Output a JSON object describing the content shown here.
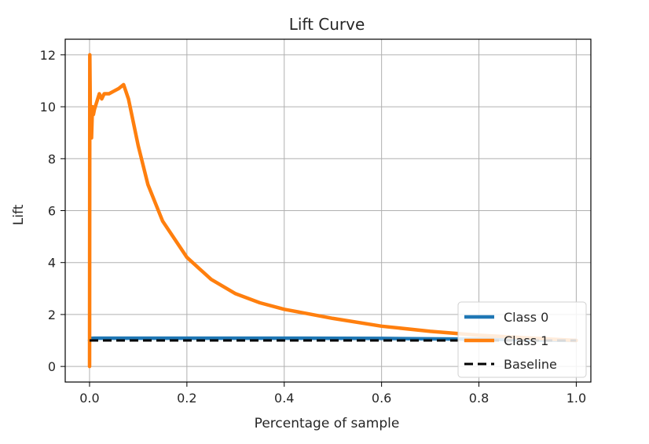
{
  "chart_data": {
    "type": "line",
    "title": "Lift Curve",
    "xlabel": "Percentage of sample",
    "ylabel": "Lift",
    "xlim": [
      -0.05,
      1.03
    ],
    "ylim": [
      -0.6,
      12.6
    ],
    "xticks": [
      0.0,
      0.2,
      0.4,
      0.6,
      0.8,
      1.0
    ],
    "xtick_labels": [
      "0.0",
      "0.2",
      "0.4",
      "0.6",
      "0.8",
      "1.0"
    ],
    "yticks": [
      0,
      2,
      4,
      6,
      8,
      10,
      12
    ],
    "ytick_labels": [
      "0",
      "2",
      "4",
      "6",
      "8",
      "10",
      "12"
    ],
    "grid": true,
    "legend_position": "lower-right",
    "series": [
      {
        "name": "Class 0",
        "color": "#1f77b4",
        "style": "solid",
        "x": [
          0.0,
          0.001,
          0.01,
          0.05,
          0.1,
          0.2,
          0.4,
          0.6,
          0.8,
          1.0
        ],
        "y": [
          1.0,
          1.08,
          1.09,
          1.09,
          1.09,
          1.09,
          1.09,
          1.08,
          1.05,
          1.0
        ]
      },
      {
        "name": "Class 1",
        "color": "#ff7f0e",
        "style": "solid",
        "x": [
          0.0,
          0.0005,
          0.001,
          0.002,
          0.004,
          0.006,
          0.008,
          0.01,
          0.015,
          0.02,
          0.025,
          0.03,
          0.04,
          0.05,
          0.06,
          0.07,
          0.08,
          0.1,
          0.12,
          0.15,
          0.2,
          0.25,
          0.3,
          0.35,
          0.4,
          0.5,
          0.6,
          0.7,
          0.8,
          0.9,
          1.0
        ],
        "y": [
          0.0,
          12.0,
          11.0,
          9.0,
          8.8,
          10.0,
          9.7,
          9.9,
          10.2,
          10.5,
          10.3,
          10.5,
          10.5,
          10.6,
          10.7,
          10.85,
          10.3,
          8.5,
          7.0,
          5.6,
          4.2,
          3.35,
          2.8,
          2.45,
          2.2,
          1.85,
          1.55,
          1.35,
          1.2,
          1.1,
          1.0
        ]
      },
      {
        "name": "Baseline",
        "color": "#000000",
        "style": "dashed",
        "x": [
          0.0,
          1.0
        ],
        "y": [
          1.0,
          1.0
        ]
      }
    ]
  }
}
